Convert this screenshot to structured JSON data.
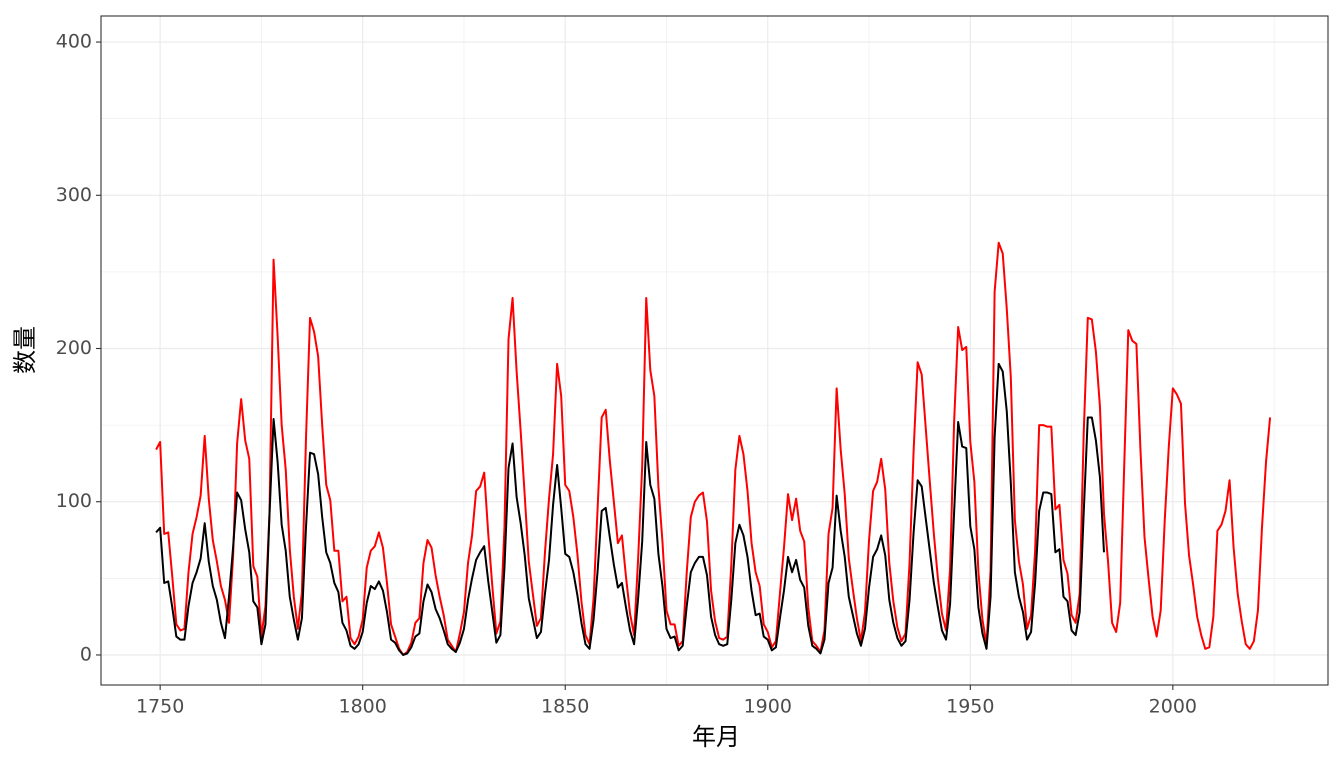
{
  "chart_data": {
    "type": "line",
    "x_label": "年月",
    "y_label": "数量",
    "x": [
      1749,
      1750,
      1751,
      1752,
      1753,
      1754,
      1755,
      1756,
      1757,
      1758,
      1759,
      1760,
      1761,
      1762,
      1763,
      1764,
      1765,
      1766,
      1767,
      1768,
      1769,
      1770,
      1771,
      1772,
      1773,
      1774,
      1775,
      1776,
      1777,
      1778,
      1779,
      1780,
      1781,
      1782,
      1783,
      1784,
      1785,
      1786,
      1787,
      1788,
      1789,
      1790,
      1791,
      1792,
      1793,
      1794,
      1795,
      1796,
      1797,
      1798,
      1799,
      1800,
      1801,
      1802,
      1803,
      1804,
      1805,
      1806,
      1807,
      1808,
      1809,
      1810,
      1811,
      1812,
      1813,
      1814,
      1815,
      1816,
      1817,
      1818,
      1819,
      1820,
      1821,
      1822,
      1823,
      1824,
      1825,
      1826,
      1827,
      1828,
      1829,
      1830,
      1831,
      1832,
      1833,
      1834,
      1835,
      1836,
      1837,
      1838,
      1839,
      1840,
      1841,
      1842,
      1843,
      1844,
      1845,
      1846,
      1847,
      1848,
      1849,
      1850,
      1851,
      1852,
      1853,
      1854,
      1855,
      1856,
      1857,
      1858,
      1859,
      1860,
      1861,
      1862,
      1863,
      1864,
      1865,
      1866,
      1867,
      1868,
      1869,
      1870,
      1871,
      1872,
      1873,
      1874,
      1875,
      1876,
      1877,
      1878,
      1879,
      1880,
      1881,
      1882,
      1883,
      1884,
      1885,
      1886,
      1887,
      1888,
      1889,
      1890,
      1891,
      1892,
      1893,
      1894,
      1895,
      1896,
      1897,
      1898,
      1899,
      1900,
      1901,
      1902,
      1903,
      1904,
      1905,
      1906,
      1907,
      1908,
      1909,
      1910,
      1911,
      1912,
      1913,
      1914,
      1915,
      1916,
      1917,
      1918,
      1919,
      1920,
      1921,
      1922,
      1923,
      1924,
      1925,
      1926,
      1927,
      1928,
      1929,
      1930,
      1931,
      1932,
      1933,
      1934,
      1935,
      1936,
      1937,
      1938,
      1939,
      1940,
      1941,
      1942,
      1943,
      1944,
      1945,
      1946,
      1947,
      1948,
      1949,
      1950,
      1951,
      1952,
      1953,
      1954,
      1955,
      1956,
      1957,
      1958,
      1959,
      1960,
      1961,
      1962,
      1963,
      1964,
      1965,
      1966,
      1967,
      1968,
      1969,
      1970,
      1971,
      1972,
      1973,
      1974,
      1975,
      1976,
      1977,
      1978,
      1979,
      1980,
      1981,
      1982,
      1983,
      1984,
      1985,
      1986,
      1987,
      1988,
      1989,
      1990,
      1991,
      1992,
      1993,
      1994,
      1995,
      1996,
      1997,
      1998,
      1999,
      2000,
      2001,
      2002,
      2003,
      2004,
      2005,
      2006,
      2007,
      2008,
      2009,
      2010,
      2011,
      2012,
      2013,
      2014,
      2015,
      2016,
      2017,
      2018,
      2019,
      2020,
      2021,
      2022,
      2023,
      2024
    ],
    "series": [
      {
        "color": "#ff0000",
        "values": [
          134,
          139,
          79,
          80,
          51,
          20,
          16,
          17,
          54,
          79,
          90,
          104,
          143,
          102,
          75,
          61,
          45,
          36,
          21,
          64,
          138,
          167,
          140,
          128,
          58,
          51,
          12,
          32,
          93,
          258,
          208,
          150,
          121,
          69,
          38,
          17,
          41,
          141,
          220,
          211,
          195,
          150,
          111,
          101,
          68,
          68,
          35,
          38,
          11,
          7,
          12,
          23,
          57,
          68,
          71,
          80,
          70,
          47,
          20,
          12,
          4,
          0,
          2,
          8,
          21,
          24,
          60,
          75,
          70,
          52,
          38,
          26,
          10,
          6,
          2,
          14,
          28,
          60,
          78,
          107,
          110,
          119,
          79,
          45,
          14,
          22,
          83,
          206,
          233,
          185,
          146,
          104,
          61,
          40,
          19,
          24,
          67,
          102,
          131,
          190,
          169,
          111,
          107,
          90,
          66,
          35,
          13,
          7,
          37,
          96,
          155,
          160,
          127,
          100,
          73,
          78,
          51,
          27,
          13,
          63,
          123,
          233,
          186,
          169,
          110,
          74,
          29,
          20,
          20,
          6,
          9,
          54,
          90,
          100,
          104,
          106,
          87,
          42,
          22,
          11,
          10,
          12,
          59,
          121,
          143,
          131,
          107,
          73,
          54,
          45,
          20,
          15,
          5,
          9,
          40,
          70,
          105,
          88,
          102,
          81,
          74,
          31,
          9,
          6,
          2,
          16,
          79,
          96,
          174,
          134,
          105,
          63,
          43,
          24,
          9,
          28,
          75,
          107,
          113,
          128,
          108,
          60,
          35,
          18,
          9,
          14,
          60,
          133,
          191,
          183,
          148,
          113,
          79,
          50,
          27,
          16,
          56,
          152,
          214,
          199,
          201,
          139,
          113,
          54,
          23,
          7,
          55,
          237,
          269,
          262,
          226,
          181,
          88,
          61,
          46,
          17,
          26,
          68,
          150,
          150,
          149,
          149,
          95,
          98,
          62,
          53,
          26,
          21,
          40,
          145,
          220,
          219,
          198,
          162,
          92,
          61,
          21,
          15,
          34,
          124,
          212,
          205,
          203,
          134,
          77,
          50,
          25,
          12,
          29,
          88,
          136,
          174,
          170,
          164,
          99,
          65,
          46,
          25,
          13,
          4,
          5,
          25,
          81,
          85,
          94,
          114,
          70,
          40,
          22,
          7,
          4,
          9,
          29,
          83,
          126,
          155
        ]
      },
      {
        "color": "#000000",
        "values": [
          80,
          83,
          47,
          48,
          31,
          12,
          10,
          10,
          32,
          47,
          54,
          63,
          86,
          61,
          45,
          36,
          21,
          11,
          38,
          70,
          106,
          101,
          82,
          67,
          35,
          31,
          7,
          20,
          92,
          154,
          126,
          85,
          68,
          38,
          23,
          10,
          24,
          83,
          132,
          131,
          118,
          90,
          67,
          60,
          47,
          41,
          21,
          16,
          6,
          4,
          7,
          15,
          34,
          45,
          43,
          48,
          42,
          28,
          10,
          8,
          3,
          0,
          1,
          5,
          12,
          14,
          35,
          46,
          41,
          30,
          24,
          16,
          7,
          4,
          2,
          8,
          17,
          36,
          50,
          62,
          67,
          71,
          48,
          28,
          8,
          13,
          57,
          122,
          138,
          103,
          86,
          65,
          37,
          24,
          11,
          15,
          40,
          62,
          98,
          124,
          96,
          66,
          64,
          54,
          39,
          21,
          7,
          4,
          23,
          55,
          94,
          96,
          77,
          59,
          44,
          47,
          31,
          16,
          7,
          37,
          74,
          139,
          111,
          102,
          66,
          45,
          17,
          11,
          12,
          3,
          6,
          32,
          54,
          60,
          64,
          64,
          52,
          25,
          13,
          7,
          6,
          7,
          36,
          73,
          85,
          78,
          64,
          42,
          26,
          27,
          12,
          10,
          3,
          5,
          24,
          42,
          64,
          54,
          62,
          49,
          44,
          19,
          6,
          4,
          1,
          10,
          47,
          57,
          104,
          81,
          64,
          38,
          26,
          14,
          6,
          17,
          44,
          64,
          69,
          78,
          65,
          36,
          21,
          11,
          6,
          9,
          36,
          80,
          114,
          110,
          89,
          68,
          47,
          31,
          16,
          10,
          33,
          93,
          152,
          136,
          135,
          84,
          69,
          31,
          14,
          4,
          38,
          142,
          190,
          185,
          159,
          112,
          54,
          38,
          28,
          10,
          15,
          47,
          94,
          106,
          106,
          105,
          67,
          69,
          38,
          35,
          16,
          13,
          28,
          93,
          155,
          155,
          140,
          116,
          67,
          null,
          null,
          null,
          null,
          null,
          null,
          null,
          null,
          null,
          null,
          null,
          null,
          null,
          null,
          null,
          null,
          null,
          null,
          null,
          null,
          null,
          null,
          null,
          null,
          null,
          null,
          null,
          null,
          null,
          null,
          null,
          null,
          null,
          null,
          null,
          null,
          null,
          null,
          null,
          null,
          null
        ]
      }
    ],
    "xlim": [
      1735.4,
      2038.3
    ],
    "ylim": [
      -19.6,
      417
    ],
    "xticks": [
      1750,
      1800,
      1850,
      1900,
      1950,
      2000
    ],
    "x_minor_ticks": [
      1775,
      1825,
      1875,
      1925,
      1975,
      2025
    ],
    "yticks": [
      0,
      100,
      200,
      300,
      400
    ],
    "y_minor_ticks": [
      50,
      150,
      250,
      350
    ],
    "grid": true
  }
}
